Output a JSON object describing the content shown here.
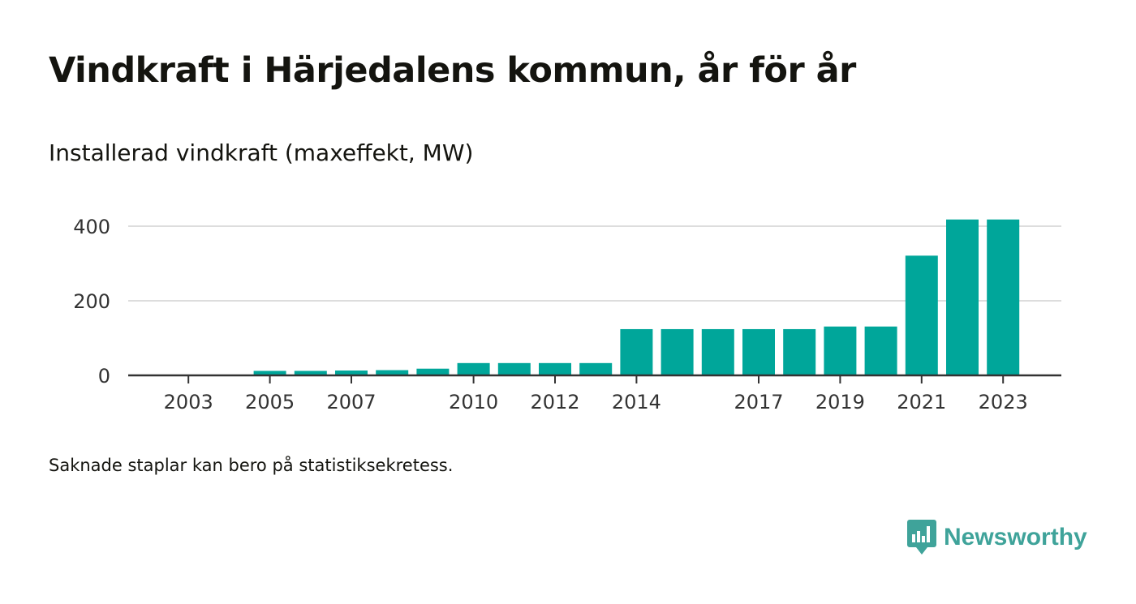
{
  "title": "Vindkraft i Härjedalens kommun, år för år",
  "subtitle": "Installerad vindkraft (maxeffekt, MW)",
  "footnote": "Saknade staplar kan bero på statistiksekretess.",
  "brand": {
    "name": "Newsworthy",
    "icon": "newsworthy-logo-icon"
  },
  "colors": {
    "bar": "#00a69a",
    "grid": "#dddddd",
    "axis": "#333333",
    "text": "#333333"
  },
  "chart_data": {
    "type": "bar",
    "categories": [
      "2002",
      "2003",
      "2004",
      "2005",
      "2006",
      "2007",
      "2008",
      "2009",
      "2010",
      "2011",
      "2012",
      "2013",
      "2014",
      "2015",
      "2016",
      "2017",
      "2018",
      "2019",
      "2020",
      "2021",
      "2022",
      "2023"
    ],
    "values": [
      null,
      null,
      null,
      12,
      12,
      13,
      14,
      18,
      33,
      33,
      33,
      33,
      124,
      124,
      124,
      124,
      124,
      131,
      131,
      321,
      418,
      418
    ],
    "tick_labels": [
      "2003",
      "2005",
      "2007",
      "2010",
      "2012",
      "2014",
      "2017",
      "2019",
      "2021",
      "2023"
    ],
    "y_ticks": [
      0,
      200,
      400
    ],
    "ylim": [
      0,
      400
    ],
    "xlabel": "",
    "ylabel": "",
    "grid": true,
    "legend": "none"
  }
}
